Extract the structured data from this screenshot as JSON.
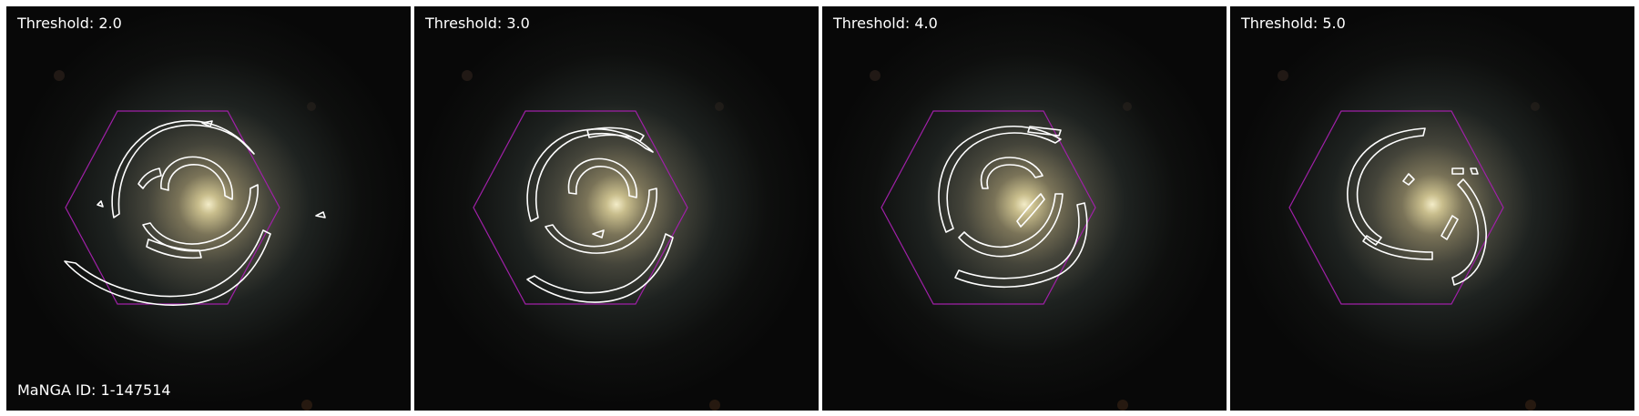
{
  "figure": {
    "manga_id_label": "MaNGA ID: 1-147514",
    "colors": {
      "background": "#ffffff",
      "sky": "#0b0908",
      "hexagon": "#a020a8",
      "contour": "#ffffff",
      "text": "#ffffff"
    },
    "panels": [
      {
        "title": "Threshold: 2.0",
        "threshold": 2.0
      },
      {
        "title": "Threshold: 3.0",
        "threshold": 3.0
      },
      {
        "title": "Threshold: 4.0",
        "threshold": 4.0
      },
      {
        "title": "Threshold: 5.0",
        "threshold": 5.0
      }
    ]
  }
}
